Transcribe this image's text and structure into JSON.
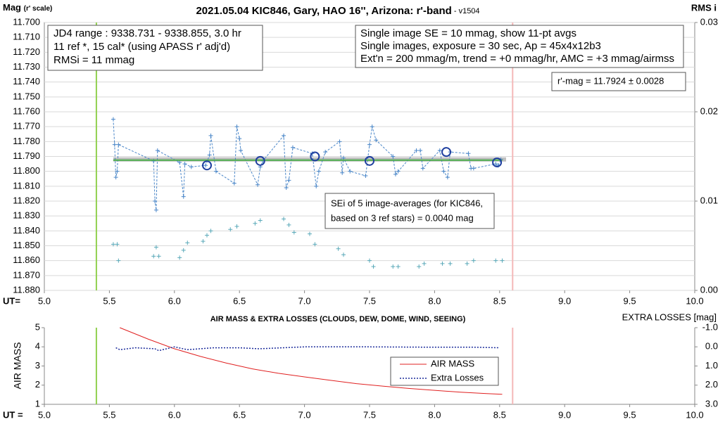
{
  "chart_data": [
    {
      "type": "scatter",
      "title": "2021.05.04 KIC846, Gary, HAO 16'', Arizona: r'-band",
      "version": " - v1504",
      "ylabel": "Mag",
      "ylabel_note": "(r' scale)",
      "y2label": "RMS i",
      "xlabel": "UT=",
      "info_left": [
        "JD4 range : 9338.731 - 9338.855,  3.0  hr",
        "11 ref *, 15 cal* (using APASS r' adj'd)",
        "RMSi = 11 mmag"
      ],
      "info_right": [
        "Single image SE = 10 mmag, show  11-pt avgs",
        "Single images, exposure = 30 sec, Ap = 45x4x12b3",
        "Ext'n = 200 mmag/m, trend =  +0 mmag/hr, AMC = +3 mmag/airmss"
      ],
      "result": "r'-mag = 11.7924 ± 0.0028",
      "note": [
        "SEi of 5 image-averages (for KIC846,",
        "based on 3 ref stars) = 0.0040 mag"
      ],
      "xlim": [
        5.0,
        10.0
      ],
      "xticks": [
        {
          "value": 5.0,
          "label": "5.0"
        },
        {
          "value": 5.5,
          "label": "5.5"
        },
        {
          "value": 6.0,
          "label": "6.0"
        },
        {
          "value": 6.5,
          "label": "6.5"
        },
        {
          "value": 7.0,
          "label": "7.0"
        },
        {
          "value": 7.5,
          "label": "7.5"
        },
        {
          "value": 8.0,
          "label": "8.0"
        },
        {
          "value": 8.5,
          "label": "8.5"
        },
        {
          "value": 9.0,
          "label": "9.0"
        },
        {
          "value": 9.5,
          "label": "9.5"
        },
        {
          "value": 10.0,
          "label": "10.0"
        }
      ],
      "ylim": [
        11.88,
        11.7
      ],
      "yticks": [
        {
          "value": 11.7,
          "label": "11.700"
        },
        {
          "value": 11.71,
          "label": "11.710"
        },
        {
          "value": 11.72,
          "label": "11.720"
        },
        {
          "value": 11.73,
          "label": "11.730"
        },
        {
          "value": 11.74,
          "label": "11.740"
        },
        {
          "value": 11.75,
          "label": "11.750"
        },
        {
          "value": 11.76,
          "label": "11.760"
        },
        {
          "value": 11.77,
          "label": "11.770"
        },
        {
          "value": 11.78,
          "label": "11.780"
        },
        {
          "value": 11.79,
          "label": "11.790"
        },
        {
          "value": 11.8,
          "label": "11.800"
        },
        {
          "value": 11.81,
          "label": "11.810"
        },
        {
          "value": 11.82,
          "label": "11.820"
        },
        {
          "value": 11.83,
          "label": "11.830"
        },
        {
          "value": 11.84,
          "label": "11.840"
        },
        {
          "value": 11.85,
          "label": "11.850"
        },
        {
          "value": 11.86,
          "label": "11.860"
        },
        {
          "value": 11.87,
          "label": "11.870"
        },
        {
          "value": 11.88,
          "label": "11.880"
        }
      ],
      "y2lim": [
        0,
        0.03
      ],
      "y2ticks": [
        {
          "value": 0,
          "label": "0.00"
        },
        {
          "value": 0.01,
          "label": "0.01"
        },
        {
          "value": 0.02,
          "label": "0.02"
        },
        {
          "value": 0.03,
          "label": "0.03"
        }
      ],
      "grid": true,
      "vlines": [
        {
          "value": 5.4,
          "color": "#92d050"
        },
        {
          "value": 8.6,
          "color": "#f4b8b8"
        }
      ],
      "series": [
        {
          "color": "#bfbfbf",
          "line": "solid",
          "width": 6,
          "x": [
            5.53,
            8.55
          ],
          "values": [
            11.792,
            11.792
          ]
        },
        {
          "color": "#4a86c8",
          "line": "dashed",
          "width": 1,
          "marker": "+",
          "x": [
            5.53,
            5.54,
            5.55,
            5.56,
            5.57,
            5.84,
            5.85,
            5.86,
            5.87,
            6.04,
            6.07,
            6.08,
            6.13,
            6.24,
            6.27,
            6.28,
            6.32,
            6.46,
            6.48,
            6.5,
            6.51,
            6.64,
            6.66,
            6.68,
            6.84,
            6.86,
            6.88,
            6.91,
            7.06,
            7.09,
            7.11,
            7.16,
            7.27,
            7.29,
            7.3,
            7.35,
            7.47,
            7.5,
            7.52,
            7.55,
            7.68,
            7.7,
            7.72,
            7.86,
            7.89,
            7.91,
            8.04,
            8.07,
            8.1,
            8.12,
            8.26,
            8.28,
            8.3,
            8.47,
            8.49,
            8.51
          ],
          "values": [
            11.765,
            11.782,
            11.804,
            11.8,
            11.782,
            11.793,
            11.82,
            11.826,
            11.786,
            11.794,
            11.817,
            11.795,
            11.797,
            11.796,
            11.789,
            11.776,
            11.8,
            11.808,
            11.77,
            11.778,
            11.786,
            11.809,
            11.797,
            11.793,
            11.776,
            11.811,
            11.806,
            11.784,
            11.788,
            11.81,
            11.8,
            11.787,
            11.78,
            11.801,
            11.791,
            11.8,
            11.803,
            11.782,
            11.77,
            11.779,
            11.79,
            11.802,
            11.8,
            11.786,
            11.786,
            11.798,
            11.786,
            11.8,
            11.804,
            11.787,
            11.788,
            11.798,
            11.798,
            11.795,
            11.796,
            11.792
          ]
        },
        {
          "color": "#4cae4c",
          "line": "solid",
          "width": 2,
          "x": [
            5.53,
            8.52
          ],
          "values": [
            11.7925,
            11.7925
          ]
        },
        {
          "color": "#1f3f9f",
          "marker": "o",
          "x": [
            6.25,
            6.66,
            7.08,
            7.5,
            8.09,
            8.48
          ],
          "values": [
            11.796,
            11.793,
            11.79,
            11.793,
            11.787,
            11.794
          ]
        },
        {
          "color": "#5aa9b9",
          "marker": "+",
          "x": [
            5.53,
            5.56,
            5.57,
            5.84,
            5.86,
            5.88,
            6.04,
            6.07,
            6.1,
            6.22,
            6.25,
            6.28,
            6.43,
            6.48,
            6.62,
            6.66,
            6.84,
            6.88,
            6.92,
            7.04,
            7.08,
            7.26,
            7.3,
            7.5,
            7.53,
            7.68,
            7.72,
            7.88,
            7.92,
            8.06,
            8.12,
            8.25,
            8.3,
            8.47,
            8.52
          ],
          "values": [
            11.849,
            11.849,
            11.86,
            11.857,
            11.851,
            11.857,
            11.858,
            11.853,
            11.848,
            11.847,
            11.843,
            11.84,
            11.839,
            11.837,
            11.835,
            11.833,
            11.832,
            11.836,
            11.841,
            11.842,
            11.849,
            11.852,
            11.856,
            11.86,
            11.864,
            11.864,
            11.864,
            11.864,
            11.862,
            11.862,
            11.862,
            11.862,
            11.86,
            11.86,
            11.86
          ]
        }
      ]
    },
    {
      "type": "line",
      "title": "AIR MASS & EXTRA LOSSES (CLOUDS, DEW, DOME, WIND, SEEING)",
      "ylabel": "AIR MASS",
      "y2label": "EXTRA LOSSES [mag]",
      "xlabel": "UT =",
      "xlim": [
        5.0,
        10.0
      ],
      "xticks": [
        {
          "value": 5.0,
          "label": "5.0"
        },
        {
          "value": 5.5,
          "label": "5.5"
        },
        {
          "value": 6.0,
          "label": "6.0"
        },
        {
          "value": 6.5,
          "label": "6.5"
        },
        {
          "value": 7.0,
          "label": "7.0"
        },
        {
          "value": 7.5,
          "label": "7.5"
        },
        {
          "value": 8.0,
          "label": "8.0"
        },
        {
          "value": 8.5,
          "label": "8.5"
        },
        {
          "value": 9.0,
          "label": "9.0"
        },
        {
          "value": 9.5,
          "label": "9.5"
        },
        {
          "value": 10.0,
          "label": "10.0"
        }
      ],
      "ylim": [
        1,
        5
      ],
      "yticks": [
        1,
        2,
        3,
        4,
        5
      ],
      "y2lim": [
        3,
        -1
      ],
      "y2ticks": [
        {
          "value": -1,
          "label": "-1.0"
        },
        {
          "value": 0,
          "label": "0.0"
        },
        {
          "value": 1,
          "label": "1.0"
        },
        {
          "value": 2,
          "label": "2.0"
        },
        {
          "value": 3,
          "label": "3.0"
        }
      ],
      "grid": false,
      "vlines": [
        {
          "value": 5.4,
          "color": "#92d050"
        },
        {
          "value": 8.6,
          "color": "#f4b8b8"
        }
      ],
      "series": [
        {
          "name": "AIR MASS",
          "color": "#e02020",
          "line": "solid",
          "width": 1,
          "x": [
            5.58,
            5.8,
            6.0,
            6.2,
            6.4,
            6.6,
            6.8,
            7.0,
            7.2,
            7.4,
            7.6,
            7.8,
            8.0,
            8.2,
            8.4,
            8.52
          ],
          "values": [
            5.0,
            4.4,
            3.9,
            3.5,
            3.15,
            2.85,
            2.62,
            2.43,
            2.25,
            2.08,
            1.95,
            1.83,
            1.73,
            1.63,
            1.56,
            1.52
          ]
        },
        {
          "name": "Extra Losses",
          "color": "#1a2a9a",
          "line": "dotted",
          "width": 1.5,
          "axis": "y2",
          "x": [
            5.55,
            5.58,
            5.7,
            5.85,
            5.88,
            6.0,
            6.1,
            6.3,
            6.5,
            6.65,
            7.0,
            7.5,
            8.0,
            8.3,
            8.5
          ],
          "values": [
            0.05,
            0.15,
            0.05,
            0.1,
            0.2,
            0.0,
            0.15,
            0.05,
            0.05,
            0.1,
            0.0,
            0.0,
            0.02,
            0.02,
            0.05
          ]
        }
      ]
    }
  ]
}
